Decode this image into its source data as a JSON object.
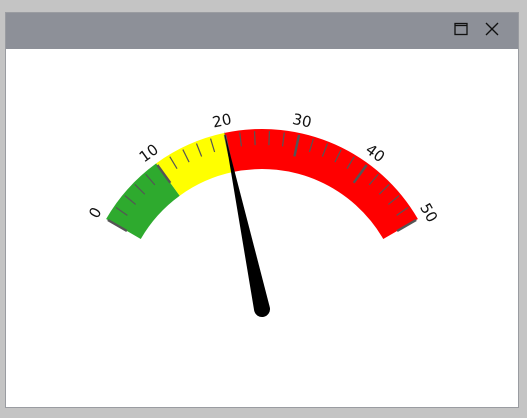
{
  "window": {
    "icons": {
      "maximize": "maximize-icon",
      "close": "close-icon"
    }
  },
  "gauge": {
    "min": 0,
    "max": 50,
    "value": 20,
    "major_step": 10,
    "minor_step": 2,
    "tick_labels": [
      "0",
      "10",
      "20",
      "30",
      "40",
      "50"
    ],
    "bands": [
      {
        "from": 0,
        "to": 10,
        "color": "#2eaa2e"
      },
      {
        "from": 10,
        "to": 20,
        "color": "#ffff00"
      },
      {
        "from": 20,
        "to": 50,
        "color": "#ff0000"
      }
    ],
    "needle_color": "#000000",
    "tick_color": "#555555"
  }
}
